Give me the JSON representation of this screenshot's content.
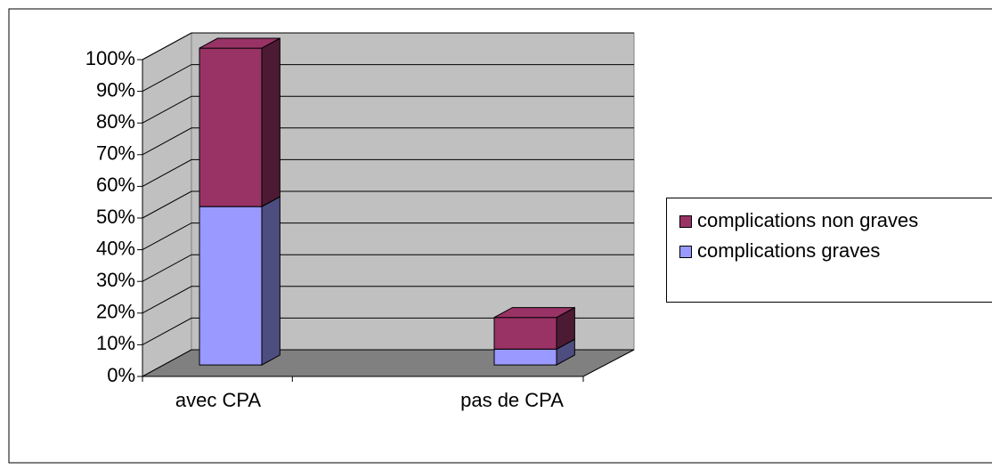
{
  "chart_data": {
    "type": "bar3d_stacked",
    "categories": [
      "avec CPA",
      "pas de CPA"
    ],
    "series": [
      {
        "name": "complications graves",
        "color": "#9999ff",
        "side_color": "#4d4d80",
        "values": [
          50,
          5
        ]
      },
      {
        "name": "complications non graves",
        "color": "#993366",
        "side_color": "#4d1a33",
        "values": [
          50,
          10
        ]
      }
    ],
    "ylim": [
      0,
      100
    ],
    "yticks": [
      {
        "value": 0,
        "label": "0%"
      },
      {
        "value": 10,
        "label": "10%"
      },
      {
        "value": 20,
        "label": "20%"
      },
      {
        "value": 30,
        "label": "30%"
      },
      {
        "value": 40,
        "label": "40%"
      },
      {
        "value": 50,
        "label": "50%"
      },
      {
        "value": 60,
        "label": "60%"
      },
      {
        "value": 70,
        "label": "70%"
      },
      {
        "value": 80,
        "label": "80%"
      },
      {
        "value": 90,
        "label": "90%"
      },
      {
        "value": 100,
        "label": "100%"
      }
    ],
    "grid": true,
    "legend": "right"
  }
}
